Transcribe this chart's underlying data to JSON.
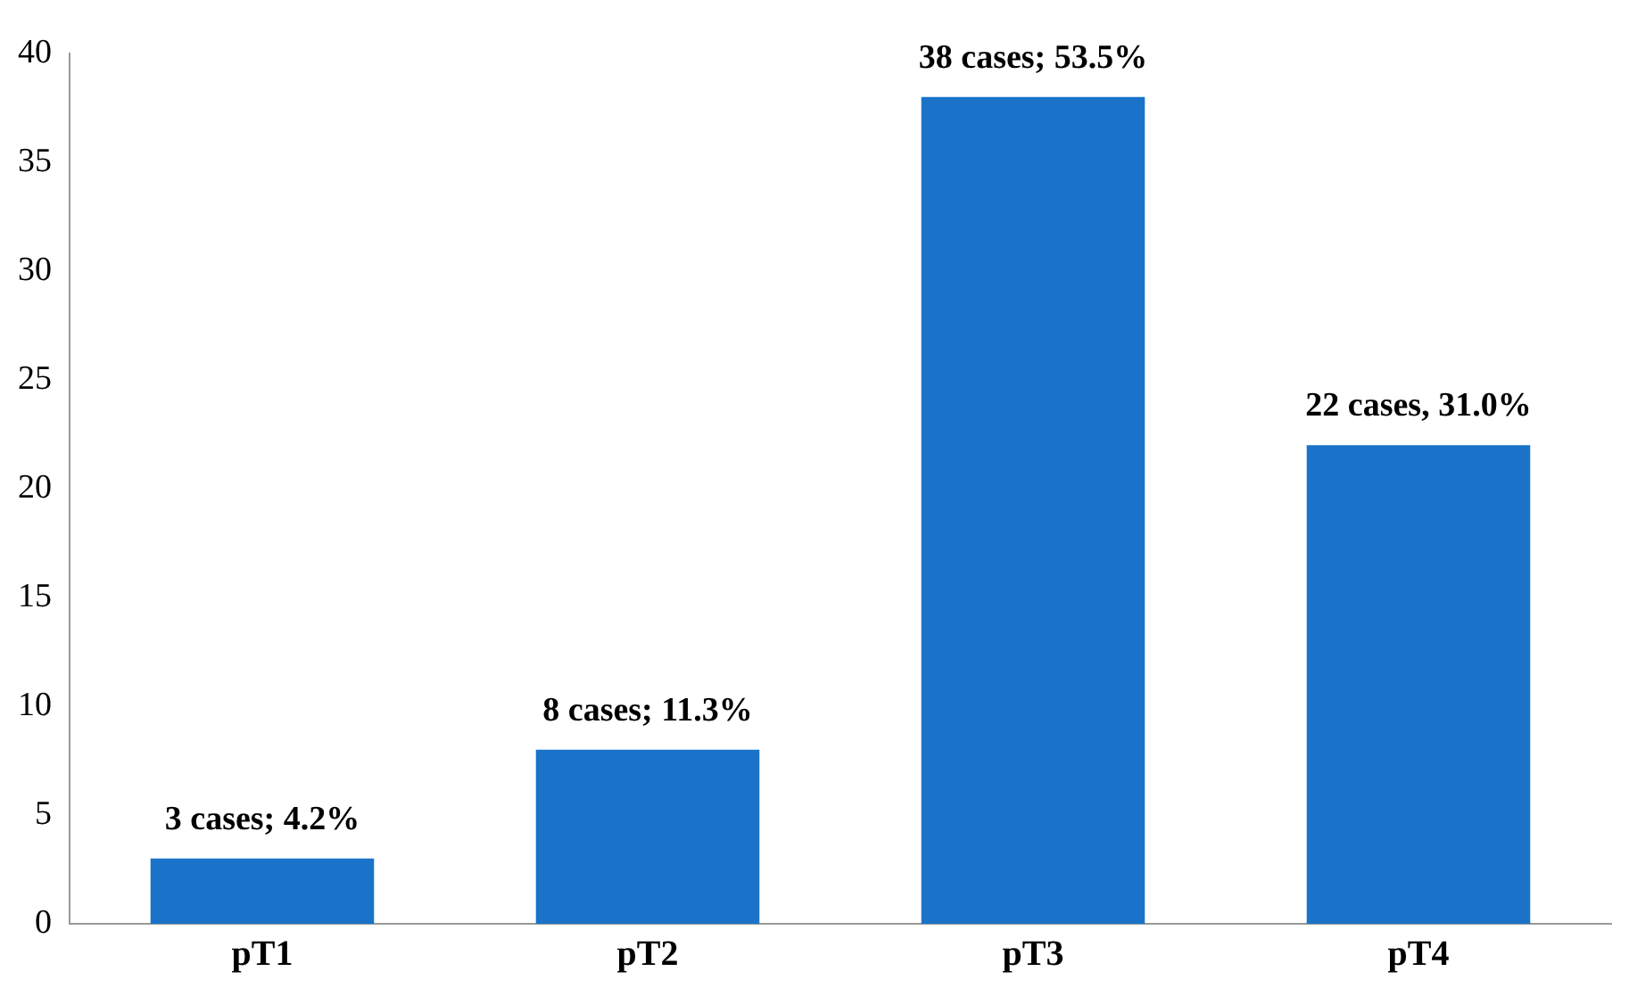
{
  "chart_data": {
    "type": "bar",
    "categories": [
      "pT1",
      "pT2",
      "pT3",
      "pT4"
    ],
    "values": [
      3,
      8,
      38,
      22
    ],
    "color": "#1a73c9",
    "value_labels": [
      "3 cases; 4.2%",
      "8 cases; 11.3%",
      "38 cases; 53.5%",
      "22 cases, 31.0%"
    ],
    "ylim": [
      0,
      40
    ],
    "yticks": [
      0,
      5,
      10,
      15,
      20,
      25,
      30,
      35,
      40
    ],
    "grid": false,
    "legend": false
  }
}
